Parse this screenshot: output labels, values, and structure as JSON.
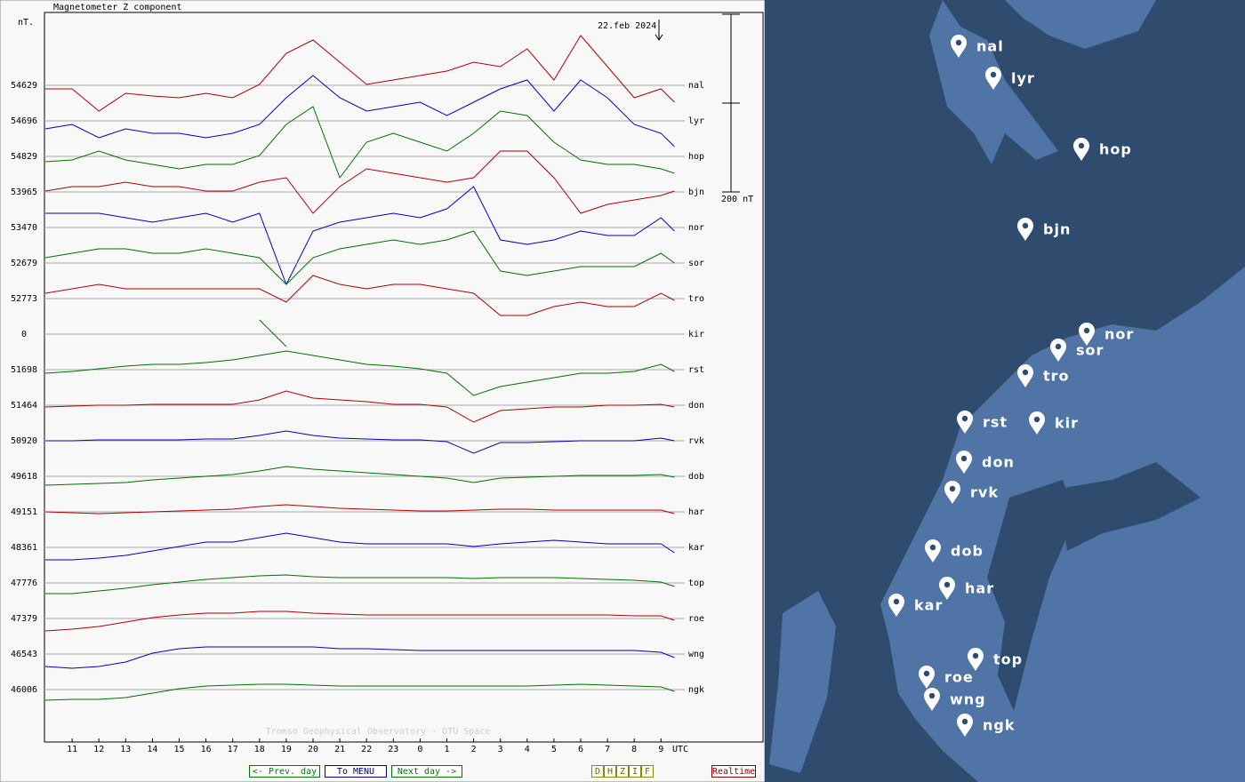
{
  "chart_data": {
    "type": "stacked-line",
    "title": "Magnetometer Z component",
    "y_unit": "nT.",
    "date": "22.feb 2024",
    "credit": "Tromso Geophysical Observatory - DTU Space",
    "x_label": "UTC",
    "scale_bar": {
      "value": 200,
      "label": "200 nT"
    },
    "xlim": [
      0,
      26.9
    ],
    "xticks": [
      {
        "value": 1,
        "label": "11"
      },
      {
        "value": 2,
        "label": "12"
      },
      {
        "value": 3,
        "label": "13"
      },
      {
        "value": 4,
        "label": "14"
      },
      {
        "value": 5,
        "label": "15"
      },
      {
        "value": 6,
        "label": "16"
      },
      {
        "value": 7,
        "label": "17"
      },
      {
        "value": 8,
        "label": "18"
      },
      {
        "value": 9,
        "label": "19"
      },
      {
        "value": 10,
        "label": "20"
      },
      {
        "value": 11,
        "label": "21"
      },
      {
        "value": 12,
        "label": "22"
      },
      {
        "value": 13,
        "label": "23"
      },
      {
        "value": 14,
        "label": "0"
      },
      {
        "value": 15,
        "label": "1"
      },
      {
        "value": 16,
        "label": "2"
      },
      {
        "value": 17,
        "label": "3"
      },
      {
        "value": 18,
        "label": "4"
      },
      {
        "value": 19,
        "label": "5"
      },
      {
        "value": 20,
        "label": "6"
      },
      {
        "value": 21,
        "label": "7"
      },
      {
        "value": 22,
        "label": "8"
      },
      {
        "value": 23,
        "label": "9"
      }
    ],
    "x": [
      0,
      1,
      2,
      3,
      4,
      5,
      6,
      7,
      8,
      9,
      10,
      11,
      12,
      13,
      14,
      15,
      16,
      17,
      18,
      19,
      20,
      21,
      22,
      23,
      23.5
    ],
    "series": [
      {
        "name": "nal",
        "baseline": 54629,
        "color": "#b00000",
        "values": [
          -4,
          -4,
          -29,
          -9,
          -12,
          -14,
          -9,
          -14,
          1,
          36,
          51,
          26,
          1,
          6,
          11,
          16,
          26,
          21,
          41,
          6,
          56,
          21,
          -14,
          -4,
          -19
        ]
      },
      {
        "name": "lyr",
        "baseline": 54696,
        "color": "#0000c0",
        "values": [
          -9,
          -4,
          -19,
          -9,
          -14,
          -14,
          -19,
          -14,
          -4,
          26,
          51,
          26,
          11,
          16,
          21,
          6,
          21,
          36,
          46,
          11,
          46,
          26,
          -4,
          -14,
          -29
        ]
      },
      {
        "name": "hop",
        "baseline": 54829,
        "color": "#007000",
        "values": [
          -6,
          -4,
          6,
          -4,
          -9,
          -14,
          -9,
          -9,
          1,
          36,
          56,
          -24,
          16,
          26,
          16,
          6,
          26,
          51,
          46,
          16,
          -4,
          -9,
          -9,
          -14,
          -19
        ]
      },
      {
        "name": "bjn",
        "baseline": 53965,
        "color": "#b00000",
        "values": [
          1,
          6,
          6,
          11,
          6,
          6,
          1,
          1,
          11,
          16,
          -24,
          6,
          26,
          21,
          16,
          11,
          16,
          46,
          46,
          16,
          -24,
          -14,
          -9,
          -4,
          1
        ]
      },
      {
        "name": "nor",
        "baseline": 53470,
        "color": "#0000c0",
        "values": [
          16,
          16,
          16,
          11,
          6,
          11,
          16,
          6,
          16,
          -64,
          -4,
          6,
          11,
          16,
          11,
          21,
          46,
          -14,
          -19,
          -14,
          -4,
          -9,
          -9,
          11,
          -4
        ]
      },
      {
        "name": "sor",
        "baseline": 52679,
        "color": "#007000",
        "values": [
          6,
          11,
          16,
          16,
          11,
          11,
          16,
          11,
          6,
          -24,
          6,
          16,
          21,
          26,
          21,
          26,
          36,
          -9,
          -14,
          -9,
          -4,
          -4,
          -4,
          11,
          0
        ]
      },
      {
        "name": "tro",
        "baseline": 52773,
        "color": "#b00000",
        "values": [
          6,
          11,
          16,
          11,
          11,
          11,
          11,
          11,
          11,
          -4,
          26,
          16,
          11,
          16,
          16,
          11,
          6,
          -19,
          -19,
          -9,
          -4,
          -9,
          -9,
          6,
          -2
        ]
      },
      {
        "name": "kir",
        "baseline": 0,
        "color": "#007000",
        "values": [
          null,
          null,
          null,
          null,
          null,
          null,
          null,
          null,
          16,
          -14,
          null,
          null,
          null,
          null,
          null,
          null,
          null,
          null,
          null,
          null,
          null,
          null,
          null,
          null,
          null
        ]
      },
      {
        "name": "rst",
        "baseline": 51698,
        "color": "#007000",
        "values": [
          -4,
          -2,
          1,
          4,
          6,
          6,
          8,
          11,
          16,
          21,
          16,
          11,
          6,
          4,
          1,
          -4,
          -29,
          -19,
          -14,
          -9,
          -4,
          -4,
          -2,
          6,
          -2
        ]
      },
      {
        "name": "don",
        "baseline": 51464,
        "color": "#b00000",
        "values": [
          -2,
          -1,
          0,
          0,
          1,
          1,
          1,
          1,
          6,
          16,
          8,
          6,
          4,
          1,
          1,
          -2,
          -19,
          -6,
          -4,
          -2,
          -2,
          0,
          0,
          1,
          -2
        ]
      },
      {
        "name": "rvk",
        "baseline": 50920,
        "color": "#0000c0",
        "values": [
          0,
          0,
          1,
          1,
          1,
          1,
          2,
          2,
          6,
          11,
          6,
          3,
          2,
          1,
          1,
          -1,
          -14,
          -2,
          -2,
          -1,
          0,
          0,
          0,
          3,
          0
        ]
      },
      {
        "name": "dob",
        "baseline": 49618,
        "color": "#007000",
        "values": [
          -10,
          -9,
          -8,
          -7,
          -4,
          -2,
          0,
          2,
          6,
          11,
          8,
          6,
          4,
          2,
          0,
          -2,
          -7,
          -2,
          -1,
          0,
          1,
          1,
          1,
          2,
          -1
        ]
      },
      {
        "name": "har",
        "baseline": 49151,
        "color": "#b00000",
        "values": [
          0,
          -1,
          -2,
          -1,
          0,
          1,
          2,
          3,
          6,
          8,
          6,
          4,
          3,
          2,
          1,
          1,
          2,
          3,
          3,
          2,
          2,
          2,
          2,
          2,
          -2
        ]
      },
      {
        "name": "kar",
        "baseline": 48361,
        "color": "#0000c0",
        "values": [
          -14,
          -14,
          -12,
          -9,
          -4,
          1,
          6,
          6,
          11,
          16,
          11,
          6,
          4,
          4,
          4,
          4,
          1,
          4,
          6,
          8,
          6,
          4,
          4,
          4,
          -6
        ]
      },
      {
        "name": "top",
        "baseline": 47776,
        "color": "#007000",
        "values": [
          -12,
          -12,
          -9,
          -6,
          -2,
          1,
          4,
          6,
          8,
          9,
          7,
          6,
          6,
          6,
          6,
          6,
          5,
          6,
          6,
          6,
          5,
          4,
          3,
          1,
          -4
        ]
      },
      {
        "name": "roe",
        "baseline": 47379,
        "color": "#b00000",
        "values": [
          -14,
          -12,
          -9,
          -4,
          1,
          4,
          6,
          6,
          8,
          8,
          6,
          5,
          4,
          4,
          4,
          4,
          4,
          4,
          4,
          4,
          4,
          4,
          3,
          3,
          -2
        ]
      },
      {
        "name": "wng",
        "baseline": 46543,
        "color": "#0000c0",
        "values": [
          -14,
          -16,
          -14,
          -9,
          1,
          6,
          8,
          8,
          8,
          8,
          8,
          6,
          6,
          5,
          4,
          4,
          4,
          4,
          4,
          4,
          4,
          4,
          4,
          2,
          -4
        ]
      },
      {
        "name": "ngk",
        "baseline": 46006,
        "color": "#007000",
        "values": [
          -12,
          -11,
          -11,
          -9,
          -4,
          1,
          4,
          5,
          6,
          6,
          5,
          4,
          4,
          4,
          4,
          4,
          4,
          4,
          4,
          5,
          6,
          5,
          4,
          3,
          -2
        ]
      }
    ]
  },
  "nav": {
    "prev": "<- Prev. day",
    "menu": "To MENU",
    "next": "Next day ->",
    "components": [
      "D",
      "H",
      "Z",
      "I",
      "F"
    ],
    "realtime": "Realtime"
  },
  "map": {
    "stations": [
      "nal",
      "lyr",
      "hop",
      "bjn",
      "nor",
      "sor",
      "tro",
      "rst",
      "kir",
      "don",
      "rvk",
      "dob",
      "har",
      "kar",
      "top",
      "roe",
      "wng",
      "ngk"
    ]
  }
}
